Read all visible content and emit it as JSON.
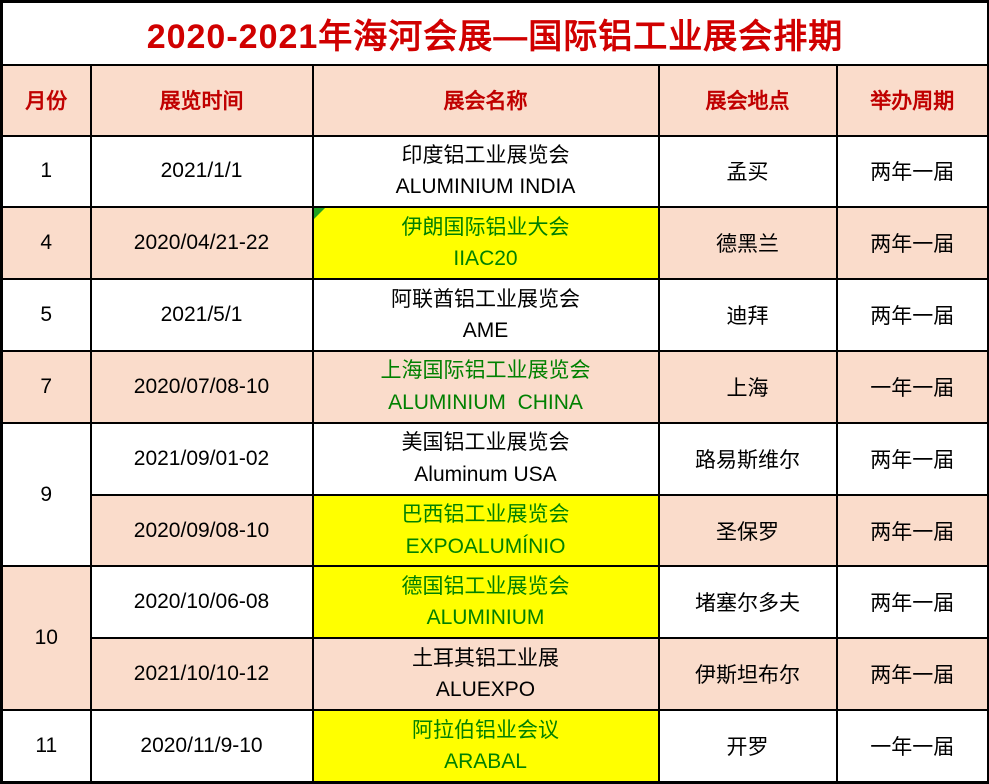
{
  "title": "2020-2021年海河会展—国际铝工业展会排期",
  "colors": {
    "title_text": "#D00000",
    "header_text": "#C00000",
    "highlight_text": "#008000",
    "body_text": "#000000",
    "pink_row_bg": "#FADCCB",
    "yellow_highlight_bg": "#FFFF00",
    "border": "#000000",
    "page_bg": "#FFFFFF",
    "corner_marker": "#21A121"
  },
  "table": {
    "headers": [
      "月份",
      "展览时间",
      "展会名称",
      "展会地点",
      "举办周期"
    ],
    "rows": [
      {
        "month": "1",
        "date": "2021/1/1",
        "name_line1": "印度铝工业展览会",
        "name_line2": "ALUMINIUM INDIA",
        "place": "孟买",
        "cycle": "两年一届"
      },
      {
        "month": "4",
        "date": "2020/04/21-22",
        "name_line1": "伊朗国际铝业大会",
        "name_line2": "IIAC20",
        "place": "德黑兰",
        "cycle": "两年一届"
      },
      {
        "month": "5",
        "date": "2021/5/1",
        "name_line1": "阿联酋铝工业展览会",
        "name_line2": "AME",
        "place": "迪拜",
        "cycle": "两年一届"
      },
      {
        "month": "7",
        "date": "2020/07/08-10",
        "name_line1": "上海国际铝工业展览会",
        "name_line2": "ALUMINIUM  CHINA",
        "place": "上海",
        "cycle": "一年一届"
      },
      {
        "month": "9",
        "date": "2021/09/01-02",
        "name_line1": "美国铝工业展览会",
        "name_line2": "Aluminum USA",
        "place": "路易斯维尔",
        "cycle": "两年一届"
      },
      {
        "date": "2020/09/08-10",
        "name_line1": "巴西铝工业展览会",
        "name_line2": "EXPOALUMÍNIO",
        "place": "圣保罗",
        "cycle": "两年一届"
      },
      {
        "month": "10",
        "date": "2020/10/06-08",
        "name_line1": "德国铝工业展览会",
        "name_line2": "ALUMINIUM",
        "place": "堵塞尔多夫",
        "cycle": "两年一届"
      },
      {
        "date": "2021/10/10-12",
        "name_line1": "土耳其铝工业展",
        "name_line2": "ALUEXPO",
        "place": "伊斯坦布尔",
        "cycle": "两年一届"
      },
      {
        "month": "11",
        "date": "2020/11/9-10",
        "name_line1": "阿拉伯铝业会议",
        "name_line2": "ARABAL",
        "place": "开罗",
        "cycle": "一年一届"
      }
    ]
  },
  "chart_data": {
    "type": "table",
    "title": "2020-2021年海河会展—国际铝工业展会排期",
    "columns": [
      "月份",
      "展览时间",
      "展会名称",
      "展会地点",
      "举办周期"
    ],
    "rows": [
      [
        "1",
        "2021/1/1",
        "印度铝工业展览会 ALUMINIUM INDIA",
        "孟买",
        "两年一届"
      ],
      [
        "4",
        "2020/04/21-22",
        "伊朗国际铝业大会 IIAC20",
        "德黑兰",
        "两年一届"
      ],
      [
        "5",
        "2021/5/1",
        "阿联酋铝工业展览会 AME",
        "迪拜",
        "两年一届"
      ],
      [
        "7",
        "2020/07/08-10",
        "上海国际铝工业展览会 ALUMINIUM  CHINA",
        "上海",
        "一年一届"
      ],
      [
        "9",
        "2021/09/01-02",
        "美国铝工业展览会 Aluminum USA",
        "路易斯维尔",
        "两年一届"
      ],
      [
        "9",
        "2020/09/08-10",
        "巴西铝工业展览会 EXPOALUMÍNIO",
        "圣保罗",
        "两年一届"
      ],
      [
        "10",
        "2020/10/06-08",
        "德国铝工业展览会 ALUMINIUM",
        "堵塞尔多夫",
        "两年一届"
      ],
      [
        "10",
        "2021/10/10-12",
        "土耳其铝工业展 ALUEXPO",
        "伊斯坦布尔",
        "两年一届"
      ],
      [
        "11",
        "2020/11/9-10",
        "阿拉伯铝业会议 ARABAL",
        "开罗",
        "一年一届"
      ]
    ]
  }
}
